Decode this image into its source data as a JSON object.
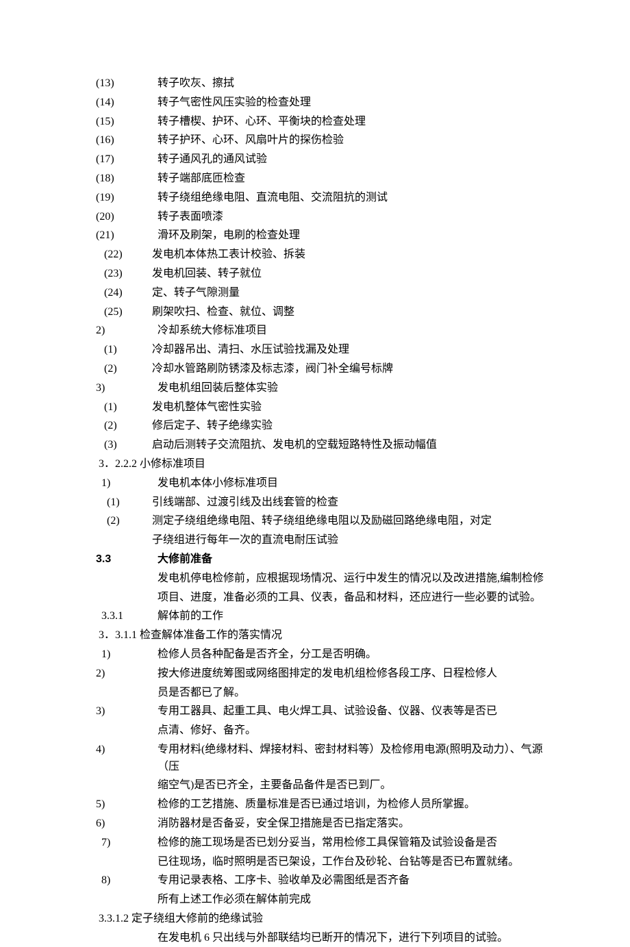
{
  "lines": [
    {
      "marker": "(13)",
      "markerClass": "w-marker1",
      "text": "转子吹灰、擦拭"
    },
    {
      "marker": "(14)",
      "markerClass": "w-marker1",
      "text": "转子气密性风压实验的检查处理"
    },
    {
      "marker": "(15)",
      "markerClass": "w-marker1",
      "text": "转子槽楔、护环、心环、平衡块的检查处理"
    },
    {
      "marker": "(16)",
      "markerClass": "w-marker1",
      "text": "转子护环、心环、风扇叶片的探伤检验"
    },
    {
      "marker": "(17)",
      "markerClass": "w-marker1",
      "text": "转子通风孔的通风试验"
    },
    {
      "marker": "(18)",
      "markerClass": "w-marker1",
      "text": "转子端部底匝检查"
    },
    {
      "marker": "(19)",
      "markerClass": "w-marker1",
      "text": "转子绕组绝缘电阻、直流电阻、交流阻抗的测试"
    },
    {
      "marker": "(20)",
      "markerClass": "w-marker1",
      "text": "转子表面喷漆"
    },
    {
      "marker": "(21)",
      "markerClass": "w-marker1",
      "text": "滑环及刷架，电刷的检查处理"
    },
    {
      "marker": " (22)",
      "markerClass": "w-marker1b",
      "text": "发电机本体热工表计校验、拆装"
    },
    {
      "marker": " (23)",
      "markerClass": "w-marker1b",
      "text": "发电机回装、转子就位"
    },
    {
      "marker": " (24)",
      "markerClass": "w-marker1b",
      "text": "定、转子气隙测量"
    },
    {
      "marker": " (25)",
      "markerClass": "w-marker1b",
      "text": "刷架吹扫、检查、就位、调整"
    },
    {
      "marker": "2)",
      "markerClass": "w-marker2",
      "text": "冷却系统大修标准项目"
    },
    {
      "marker": " (1)",
      "markerClass": "w-marker2b",
      "text": "冷却器吊出、清扫、水压试验找漏及处理"
    },
    {
      "marker": " (2)",
      "markerClass": "w-marker2b",
      "text": "冷却水管路刷防锈漆及标志漆，阀门补全编号标牌"
    },
    {
      "marker": "3)",
      "markerClass": "w-marker2",
      "text": "发电机组回装后整体实验"
    },
    {
      "marker": " (1)",
      "markerClass": "w-marker2b",
      "text": "发电机整体气密性实验"
    },
    {
      "marker": " (2)",
      "markerClass": "w-marker2b",
      "text": "修后定子、转子绝缘实验"
    },
    {
      "marker": " (3)",
      "markerClass": "w-marker2b",
      "text": "启动后测转子交流阻抗、发电机的空载短路特性及振动幅值"
    },
    {
      "marker": " 3．2.2.2",
      "markerClass": "w-marker2c",
      "text": "小修标准项目",
      "joined": true
    },
    {
      "marker": " 1)",
      "markerClass": "w-marker2c",
      "text": "发电机本体小修标准项目"
    },
    {
      "marker": "  (1)",
      "markerClass": "w-marker2b",
      "text": "引线端部、过渡引线及出线套管的检查"
    },
    {
      "marker": "  (2)",
      "markerClass": "w-marker2b",
      "text": "测定子绕组绝缘电阻、转子绕组绝缘电阻以及励磁回路绝缘电阻，对定"
    },
    {
      "marker": "",
      "markerClass": "w-marker2b",
      "text": "子绕组进行每年一次的直流电耐压试验"
    },
    {
      "marker": "3.3",
      "markerClass": "w-sect",
      "text": "大修前准备",
      "bold": true
    },
    {
      "marker": "",
      "markerClass": "w-sect",
      "text": "发电机停电检修前，应根据现场情况、运行中发生的情况以及改进措施,编制检修"
    },
    {
      "marker": "",
      "markerClass": "w-sect",
      "text": "项目、进度，准备必须的工具、仪表，备品和材料，还应进行一些必要的试验。"
    },
    {
      "marker": " 3.3.1",
      "markerClass": "w-marker2c",
      "text": "解体前的工作",
      "joined": false
    },
    {
      "marker": " 3．3.1.1",
      "markerClass": "w-marker2c",
      "text": "检查解体准备工作的落实情况",
      "joined": true
    },
    {
      "marker": " 1)",
      "markerClass": "w-marker2c",
      "text": "检修人员各种配备是否齐全，分工是否明确。"
    },
    {
      "marker": "2)",
      "markerClass": "w-marker2",
      "text": "按大修进度统筹图或网络图排定的发电机组检修各段工序、日程检修人"
    },
    {
      "marker": "",
      "markerClass": "w-marker2",
      "text": "员是否都已了解。"
    },
    {
      "marker": "3)",
      "markerClass": "w-marker2",
      "text": "专用工器具、起重工具、电火焊工具、试验设备、仪器、仪表等是否已"
    },
    {
      "marker": "",
      "markerClass": "w-marker2",
      "text": "点清、修好、备齐。"
    },
    {
      "marker": "4)",
      "markerClass": "w-marker2",
      "text": "专用材料(绝缘材料、焊接材料、密封材料等）及检修用电源(照明及动力）、气源（压"
    },
    {
      "marker": "",
      "markerClass": "w-marker2",
      "text": "缩空气)是否已齐全，主要备品备件是否已到厂。"
    },
    {
      "marker": "5)",
      "markerClass": "w-marker2",
      "text": "检修的工艺措施、质量标准是否已通过培训，为检修人员所掌握。"
    },
    {
      "marker": "6)",
      "markerClass": "w-marker2",
      "text": "消防器材是否备妥，安全保卫措施是否已指定落实。"
    },
    {
      "marker": " 7)",
      "markerClass": "w-marker2c",
      "text": "检修的施工现场是否已划分妥当，常用检修工具保管箱及试验设备是否",
      "joined": false
    },
    {
      "marker": "",
      "markerClass": "w-marker2",
      "text": "已往现场，临时照明是否已架设，工作台及砂轮、台钻等是否已布置就绪。"
    },
    {
      "marker": " 8)",
      "markerClass": "w-marker2c",
      "text": "专用记录表格、工序卡、验收单及必需图纸是否齐备",
      "joined": false
    },
    {
      "marker": "",
      "markerClass": "w-marker2",
      "text": "所有上述工作必须在解体前完成"
    },
    {
      "marker": " 3.3.1.2",
      "markerClass": "w-marker2c",
      "text": "定子绕组大修前的绝缘试验",
      "joined": true
    },
    {
      "marker": "",
      "markerClass": "w-marker2",
      "text": "在发电机 6 只出线与外部联结均已断开的情况下，进行下列项目的试验。"
    }
  ]
}
